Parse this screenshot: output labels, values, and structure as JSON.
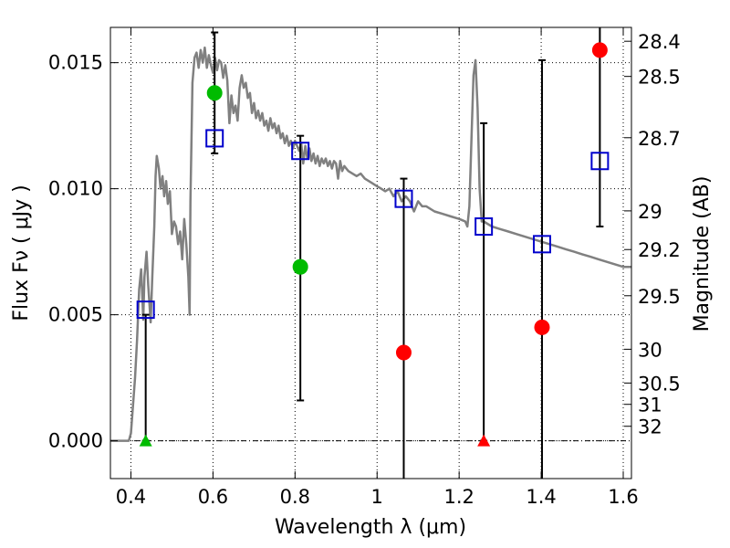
{
  "chart_data": {
    "type": "scatter",
    "xlabel": "Wavelength  λ (μm)",
    "ylabel": "Flux  Fν  ( μJy )",
    "y2label": "Magnitude (AB)",
    "xlim": [
      0.35,
      1.62
    ],
    "ylim": [
      -0.0015,
      0.0164
    ],
    "grid": true,
    "x_ticks": [
      {
        "v": 0.4,
        "label": "0.4"
      },
      {
        "v": 0.6,
        "label": "0.6"
      },
      {
        "v": 0.8,
        "label": "0.8"
      },
      {
        "v": 1.0,
        "label": "1"
      },
      {
        "v": 1.2,
        "label": "1.2"
      },
      {
        "v": 1.4,
        "label": "1.4"
      },
      {
        "v": 1.6,
        "label": "1.6"
      }
    ],
    "y_ticks": [
      {
        "v": 0.0,
        "label": "0.000"
      },
      {
        "v": 0.005,
        "label": "0.005"
      },
      {
        "v": 0.01,
        "label": "0.010"
      },
      {
        "v": 0.015,
        "label": "0.015"
      }
    ],
    "mag_ticks": [
      {
        "v": 28.4,
        "label": "28.4"
      },
      {
        "v": 28.5,
        "label": "28.5"
      },
      {
        "v": 28.7,
        "label": "28.7"
      },
      {
        "v": 29.0,
        "label": "29"
      },
      {
        "v": 29.2,
        "label": "29.2"
      },
      {
        "v": 29.5,
        "label": "29.5"
      },
      {
        "v": 30.0,
        "label": "30"
      },
      {
        "v": 30.5,
        "label": "30.5"
      },
      {
        "v": 31.0,
        "label": "31"
      },
      {
        "v": 32.0,
        "label": "32"
      }
    ],
    "series": [
      {
        "type": "line",
        "color": "#808080",
        "points": [
          [
            0.35,
            0.0
          ],
          [
            0.395,
            0.0
          ],
          [
            0.4,
            0.0003
          ],
          [
            0.41,
            0.0025
          ],
          [
            0.415,
            0.004
          ],
          [
            0.42,
            0.006
          ],
          [
            0.425,
            0.0068
          ],
          [
            0.43,
            0.0048
          ],
          [
            0.433,
            0.0065
          ],
          [
            0.438,
            0.0075
          ],
          [
            0.442,
            0.0062
          ],
          [
            0.448,
            0.0047
          ],
          [
            0.452,
            0.0065
          ],
          [
            0.457,
            0.0085
          ],
          [
            0.46,
            0.0105
          ],
          [
            0.463,
            0.0113
          ],
          [
            0.468,
            0.0108
          ],
          [
            0.472,
            0.01
          ],
          [
            0.477,
            0.0105
          ],
          [
            0.481,
            0.0097
          ],
          [
            0.486,
            0.0103
          ],
          [
            0.49,
            0.0094
          ],
          [
            0.495,
            0.0099
          ],
          [
            0.5,
            0.0082
          ],
          [
            0.505,
            0.0087
          ],
          [
            0.51,
            0.0085
          ],
          [
            0.515,
            0.0078
          ],
          [
            0.52,
            0.0083
          ],
          [
            0.525,
            0.0072
          ],
          [
            0.53,
            0.0088
          ],
          [
            0.535,
            0.0078
          ],
          [
            0.54,
            0.0065
          ],
          [
            0.543,
            0.005
          ],
          [
            0.545,
            0.0095
          ],
          [
            0.55,
            0.0142
          ],
          [
            0.555,
            0.0152
          ],
          [
            0.56,
            0.0154
          ],
          [
            0.565,
            0.0148
          ],
          [
            0.57,
            0.0155
          ],
          [
            0.575,
            0.015
          ],
          [
            0.58,
            0.0156
          ],
          [
            0.585,
            0.0148
          ],
          [
            0.59,
            0.0153
          ],
          [
            0.595,
            0.0149
          ],
          [
            0.6,
            0.0146
          ],
          [
            0.605,
            0.0152
          ],
          [
            0.61,
            0.0147
          ],
          [
            0.615,
            0.0151
          ],
          [
            0.62,
            0.015
          ],
          [
            0.625,
            0.0144
          ],
          [
            0.63,
            0.0149
          ],
          [
            0.635,
            0.0143
          ],
          [
            0.64,
            0.0126
          ],
          [
            0.645,
            0.0137
          ],
          [
            0.65,
            0.013
          ],
          [
            0.655,
            0.0133
          ],
          [
            0.66,
            0.0127
          ],
          [
            0.665,
            0.014
          ],
          [
            0.67,
            0.0145
          ],
          [
            0.675,
            0.014
          ],
          [
            0.68,
            0.0142
          ],
          [
            0.685,
            0.0136
          ],
          [
            0.69,
            0.0138
          ],
          [
            0.695,
            0.013
          ],
          [
            0.7,
            0.0134
          ],
          [
            0.705,
            0.0128
          ],
          [
            0.71,
            0.0131
          ],
          [
            0.715,
            0.0127
          ],
          [
            0.72,
            0.013
          ],
          [
            0.725,
            0.0125
          ],
          [
            0.73,
            0.0127
          ],
          [
            0.735,
            0.0123
          ],
          [
            0.74,
            0.0128
          ],
          [
            0.745,
            0.0124
          ],
          [
            0.75,
            0.0126
          ],
          [
            0.755,
            0.0122
          ],
          [
            0.76,
            0.0125
          ],
          [
            0.765,
            0.012
          ],
          [
            0.77,
            0.0122
          ],
          [
            0.775,
            0.0118
          ],
          [
            0.78,
            0.0121
          ],
          [
            0.785,
            0.0117
          ],
          [
            0.79,
            0.0119
          ],
          [
            0.795,
            0.0116
          ],
          [
            0.8,
            0.0119
          ],
          [
            0.81,
            0.0115
          ],
          [
            0.815,
            0.0118
          ],
          [
            0.82,
            0.011
          ],
          [
            0.825,
            0.0117
          ],
          [
            0.83,
            0.0112
          ],
          [
            0.835,
            0.0116
          ],
          [
            0.84,
            0.0111
          ],
          [
            0.845,
            0.0114
          ],
          [
            0.85,
            0.011
          ],
          [
            0.855,
            0.0113
          ],
          [
            0.86,
            0.0109
          ],
          [
            0.865,
            0.0112
          ],
          [
            0.87,
            0.011
          ],
          [
            0.875,
            0.0112
          ],
          [
            0.88,
            0.0109
          ],
          [
            0.885,
            0.0111
          ],
          [
            0.89,
            0.0108
          ],
          [
            0.895,
            0.0111
          ],
          [
            0.9,
            0.011
          ],
          [
            0.905,
            0.0104
          ],
          [
            0.91,
            0.0111
          ],
          [
            0.915,
            0.0107
          ],
          [
            0.92,
            0.0109
          ],
          [
            0.93,
            0.0107
          ],
          [
            0.94,
            0.0106
          ],
          [
            0.95,
            0.0105
          ],
          [
            0.96,
            0.0106
          ],
          [
            0.97,
            0.0104
          ],
          [
            0.98,
            0.0103
          ],
          [
            0.99,
            0.0102
          ],
          [
            1.0,
            0.0101
          ],
          [
            1.01,
            0.01
          ],
          [
            1.02,
            0.0099
          ],
          [
            1.03,
            0.01
          ],
          [
            1.04,
            0.0097
          ],
          [
            1.05,
            0.0099
          ],
          [
            1.06,
            0.0095
          ],
          [
            1.07,
            0.0097
          ],
          [
            1.08,
            0.0095
          ],
          [
            1.09,
            0.0091
          ],
          [
            1.1,
            0.0095
          ],
          [
            1.11,
            0.0093
          ],
          [
            1.12,
            0.0093
          ],
          [
            1.14,
            0.0091
          ],
          [
            1.16,
            0.009
          ],
          [
            1.18,
            0.0089
          ],
          [
            1.2,
            0.0088
          ],
          [
            1.215,
            0.0087
          ],
          [
            1.22,
            0.0085
          ],
          [
            1.225,
            0.0093
          ],
          [
            1.23,
            0.012
          ],
          [
            1.235,
            0.0145
          ],
          [
            1.24,
            0.0151
          ],
          [
            1.245,
            0.0132
          ],
          [
            1.25,
            0.01
          ],
          [
            1.255,
            0.0087
          ],
          [
            1.26,
            0.0087
          ],
          [
            1.28,
            0.0085
          ],
          [
            1.3,
            0.0084
          ],
          [
            1.32,
            0.0083
          ],
          [
            1.34,
            0.0082
          ],
          [
            1.36,
            0.0081
          ],
          [
            1.38,
            0.008
          ],
          [
            1.4,
            0.0079
          ],
          [
            1.42,
            0.0078
          ],
          [
            1.44,
            0.0077
          ],
          [
            1.46,
            0.0076
          ],
          [
            1.48,
            0.0075
          ],
          [
            1.5,
            0.0074
          ],
          [
            1.52,
            0.0073
          ],
          [
            1.54,
            0.0072
          ],
          [
            1.56,
            0.0071
          ],
          [
            1.58,
            0.007
          ],
          [
            1.6,
            0.0069
          ],
          [
            1.62,
            0.0069
          ]
        ]
      },
      {
        "type": "model-squares",
        "color": "#0000cc",
        "x": [
          0.436,
          0.604,
          0.813,
          1.065,
          1.26,
          1.402,
          1.543
        ],
        "y": [
          0.0052,
          0.012,
          0.0115,
          0.0096,
          0.0085,
          0.0078,
          0.0111
        ]
      },
      {
        "type": "detections",
        "color": "#00bb00",
        "x": [
          0.604,
          0.813
        ],
        "y": [
          0.0138,
          0.0069
        ],
        "err_low": [
          0.0114,
          0.0016
        ],
        "err_high": [
          0.0162,
          0.0121
        ]
      },
      {
        "type": "low-significance",
        "color": "#ff0000",
        "x": [
          1.065,
          1.402,
          1.543
        ],
        "y": [
          0.0035,
          0.0045,
          0.0155
        ],
        "err_low": [
          -0.0015,
          -0.0015,
          0.0085
        ],
        "err_high": [
          0.0104,
          0.0151,
          0.0164
        ]
      },
      {
        "type": "upper-limits",
        "color_green": "#00bb00",
        "color_red": "#ff0000",
        "x": [
          0.436,
          1.26
        ],
        "y": [
          0.0,
          0.0
        ],
        "colors": [
          "#00bb00",
          "#ff0000"
        ],
        "err_low": [
          0.0,
          0.0
        ],
        "err_high": [
          0.005,
          0.0126
        ]
      }
    ]
  }
}
